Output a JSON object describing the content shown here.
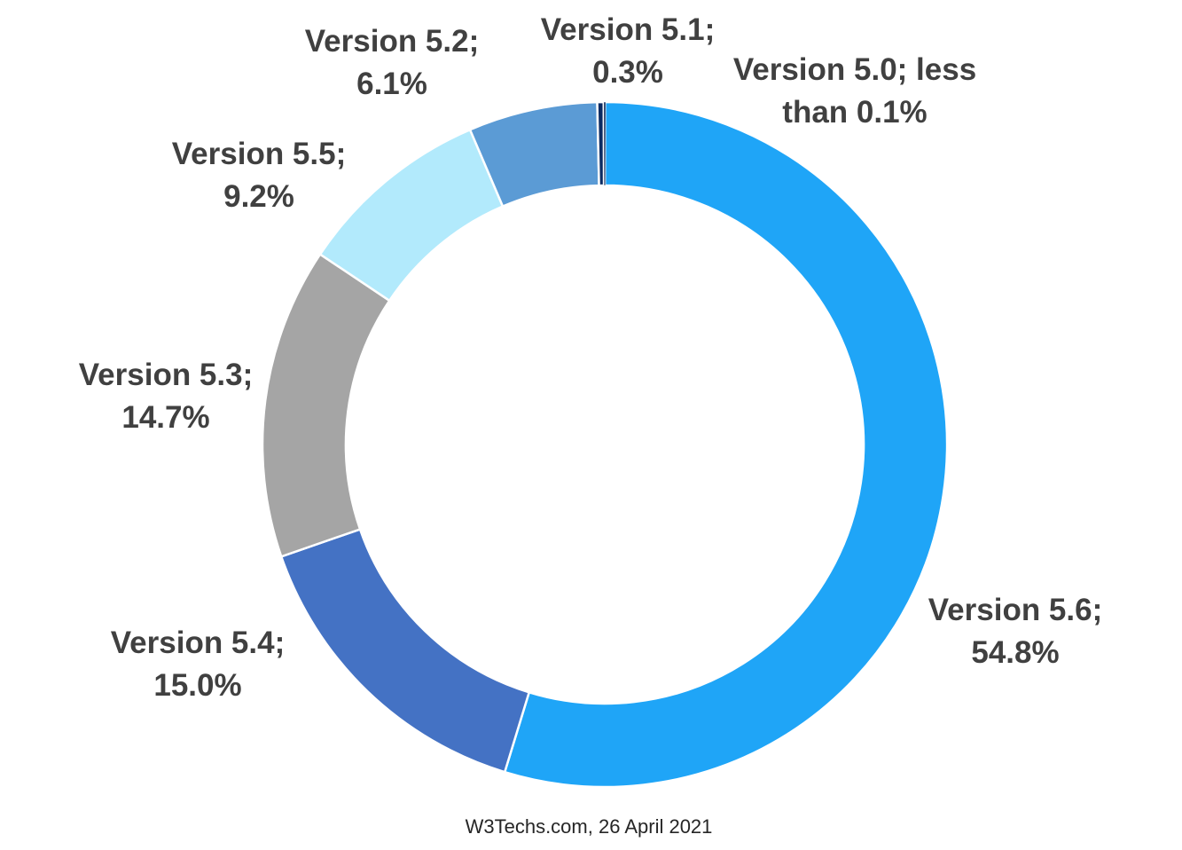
{
  "chart_data": {
    "type": "pie",
    "variant": "donut",
    "title": "",
    "slices": [
      {
        "name": "Version 5.6",
        "value": 54.8,
        "label_lines": [
          "Version 5.6;",
          "54.8%"
        ],
        "color": "#1fa5f7"
      },
      {
        "name": "Version 5.4",
        "value": 15.0,
        "label_lines": [
          "Version 5.4;",
          "15.0%"
        ],
        "color": "#4472c4"
      },
      {
        "name": "Version 5.3",
        "value": 14.7,
        "label_lines": [
          "Version 5.3;",
          "14.7%"
        ],
        "color": "#a5a5a5"
      },
      {
        "name": "Version 5.5",
        "value": 9.2,
        "label_lines": [
          "Version 5.5;",
          "9.2%"
        ],
        "color": "#b2eafc"
      },
      {
        "name": "Version 5.2",
        "value": 6.1,
        "label_lines": [
          "Version 5.2;",
          "6.1%"
        ],
        "color": "#5b9bd5"
      },
      {
        "name": "Version 5.1",
        "value": 0.3,
        "label_lines": [
          "Version 5.1;",
          "0.3%"
        ],
        "color": "#0b2b63"
      },
      {
        "name": "Version 5.0",
        "value": 0.05,
        "label_lines": [
          "Version 5.0; less",
          "than 0.1%"
        ],
        "color": "#1f3864"
      }
    ],
    "legend": "none",
    "label_color": "#404040",
    "slice_border_color": "#ffffff"
  },
  "footer": {
    "source_text": "W3Techs.com, 26 April 2021"
  }
}
